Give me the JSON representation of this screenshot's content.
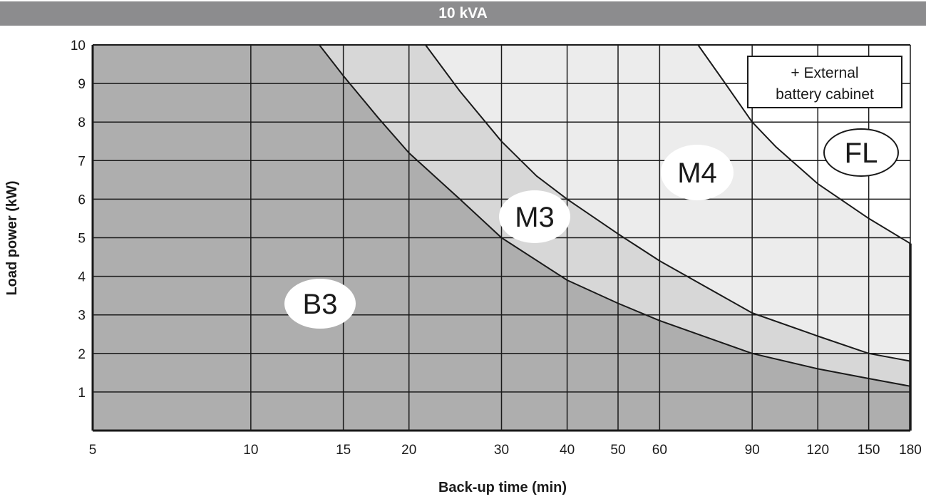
{
  "chart_data": {
    "type": "area",
    "title": "10 kVA",
    "xlabel": "Back-up time (min)",
    "ylabel": "Load power (kW)",
    "x_scale": "log",
    "xlim": [
      5,
      180
    ],
    "ylim": [
      0,
      10
    ],
    "x_ticks": [
      5,
      10,
      15,
      20,
      30,
      40,
      50,
      60,
      90,
      120,
      150,
      180
    ],
    "x_tick_labels": [
      "5",
      "10",
      "15",
      "20",
      "30",
      "40",
      "50",
      "60",
      "90",
      "120",
      "150",
      "180"
    ],
    "y_ticks": [
      1,
      2,
      3,
      4,
      5,
      6,
      7,
      8,
      9,
      10
    ],
    "y_tick_labels": [
      "1",
      "2",
      "3",
      "4",
      "5",
      "6",
      "7",
      "8",
      "9",
      "10"
    ],
    "grid": true,
    "series": [
      {
        "name": "B3",
        "fill": "#aeaeae",
        "x": [
          13.5,
          15,
          17.5,
          20,
          25,
          30,
          40,
          50,
          60,
          90,
          120,
          150,
          180
        ],
        "y": [
          10,
          9.2,
          8.1,
          7.2,
          6.0,
          5.0,
          3.9,
          3.3,
          2.85,
          2.0,
          1.6,
          1.35,
          1.15
        ]
      },
      {
        "name": "M3",
        "fill": "#d7d7d7",
        "x": [
          21.5,
          25,
          30,
          35,
          40,
          50,
          60,
          90,
          120,
          150,
          180
        ],
        "y": [
          10,
          8.8,
          7.5,
          6.6,
          6.0,
          5.1,
          4.4,
          3.05,
          2.45,
          2.0,
          1.8
        ]
      },
      {
        "name": "M4",
        "fill": "#ececec",
        "x": [
          71,
          80,
          90,
          100,
          120,
          150,
          180
        ],
        "y": [
          10,
          9.0,
          8.0,
          7.35,
          6.4,
          5.5,
          4.85
        ]
      },
      {
        "name": "FL",
        "fill": "#ffffff"
      }
    ],
    "zone_labels": [
      "B3",
      "M3",
      "M4",
      "FL"
    ],
    "annotation": {
      "line1": "+ External",
      "line2": "battery cabinet"
    }
  }
}
